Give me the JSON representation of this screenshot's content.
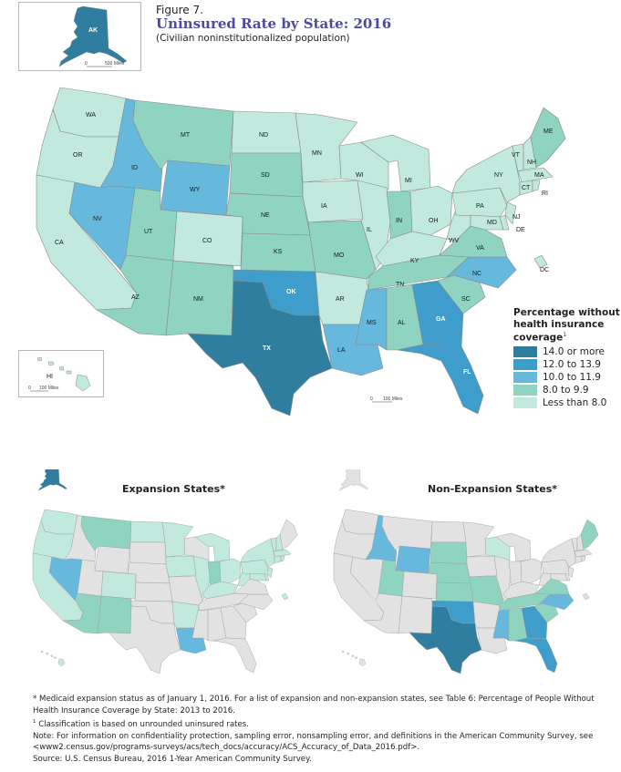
{
  "figure_label": "Figure 7.",
  "title": "Uninsured Rate by State: 2016",
  "subtitle": "(Civilian noninstitutionalized population)",
  "legend": {
    "title_lines": [
      "Percentage without",
      "health insurance",
      "coverage"
    ],
    "title_sup": "1",
    "classes": [
      {
        "label": "14.0 or more",
        "color": "#2f7ea0"
      },
      {
        "label": "12.0 to 13.9",
        "color": "#3f9dcb"
      },
      {
        "label": "10.0 to 11.9",
        "color": "#66b8dc"
      },
      {
        "label": "8.0 to 9.9",
        "color": "#8fd3c1"
      },
      {
        "label": "Less than 8.0",
        "color": "#c1e9dd"
      }
    ]
  },
  "colors": {
    "no_data_gray": "#e2e2e2",
    "border": "#8a8a8a",
    "title_purple": "#4f4aa1"
  },
  "states": [
    {
      "abbr": "WA",
      "class": 4
    },
    {
      "abbr": "OR",
      "class": 4
    },
    {
      "abbr": "CA",
      "class": 4
    },
    {
      "abbr": "ID",
      "class": 2
    },
    {
      "abbr": "NV",
      "class": 2
    },
    {
      "abbr": "MT",
      "class": 3
    },
    {
      "abbr": "WY",
      "class": 2
    },
    {
      "abbr": "UT",
      "class": 3
    },
    {
      "abbr": "CO",
      "class": 4
    },
    {
      "abbr": "AZ",
      "class": 3
    },
    {
      "abbr": "NM",
      "class": 3
    },
    {
      "abbr": "ND",
      "class": 4
    },
    {
      "abbr": "SD",
      "class": 3
    },
    {
      "abbr": "NE",
      "class": 3
    },
    {
      "abbr": "KS",
      "class": 3
    },
    {
      "abbr": "OK",
      "class": 1
    },
    {
      "abbr": "TX",
      "class": 0
    },
    {
      "abbr": "MN",
      "class": 4
    },
    {
      "abbr": "IA",
      "class": 4
    },
    {
      "abbr": "MO",
      "class": 3
    },
    {
      "abbr": "AR",
      "class": 4
    },
    {
      "abbr": "LA",
      "class": 2
    },
    {
      "abbr": "WI",
      "class": 4
    },
    {
      "abbr": "IL",
      "class": 4
    },
    {
      "abbr": "MI",
      "class": 4
    },
    {
      "abbr": "IN",
      "class": 3
    },
    {
      "abbr": "OH",
      "class": 4
    },
    {
      "abbr": "KY",
      "class": 4
    },
    {
      "abbr": "TN",
      "class": 3
    },
    {
      "abbr": "MS",
      "class": 2
    },
    {
      "abbr": "AL",
      "class": 3
    },
    {
      "abbr": "GA",
      "class": 1
    },
    {
      "abbr": "FL",
      "class": 1
    },
    {
      "abbr": "SC",
      "class": 3
    },
    {
      "abbr": "NC",
      "class": 2
    },
    {
      "abbr": "VA",
      "class": 3
    },
    {
      "abbr": "WV",
      "class": 4
    },
    {
      "abbr": "PA",
      "class": 4
    },
    {
      "abbr": "NY",
      "class": 4
    },
    {
      "abbr": "VT",
      "class": 4
    },
    {
      "abbr": "NH",
      "class": 4
    },
    {
      "abbr": "ME",
      "class": 3
    },
    {
      "abbr": "MA",
      "class": 4
    },
    {
      "abbr": "CT",
      "class": 4
    },
    {
      "abbr": "RI",
      "class": 4
    },
    {
      "abbr": "NJ",
      "class": 4
    },
    {
      "abbr": "DE",
      "class": 4
    },
    {
      "abbr": "MD",
      "class": 4
    },
    {
      "abbr": "DC",
      "class": 4
    },
    {
      "abbr": "AK",
      "class": 0
    },
    {
      "abbr": "HI",
      "class": 4
    }
  ],
  "scale_bars": {
    "alaska": "500 Miles",
    "hawaii": "100 Miles",
    "conus": "100 Miles",
    "scale_zero": "0"
  },
  "panels": {
    "expansion_title": "Expansion States*",
    "nonexpansion_title": "Non-Expansion States*"
  },
  "notes": {
    "line1": "* Medicaid expansion status as of January 1, 2016. For a list of expansion and non-expansion states, see Table 6: Percentage of People Without Health Insurance Coverage by State: 2013 to 2016.",
    "line2_sup": "1",
    "line2": " Classification is based on unrounded uninsured rates.",
    "line3": "Note: For information on confidentiality protection, sampling error, nonsampling error, and definitions in the American Community Survey, see <www2.census.gov/programs-surveys/acs/tech_docs/accuracy/ACS_Accuracy_of_Data_2016.pdf>.",
    "line4": "Source: U.S. Census Bureau, 2016 1-Year American Community Survey."
  }
}
